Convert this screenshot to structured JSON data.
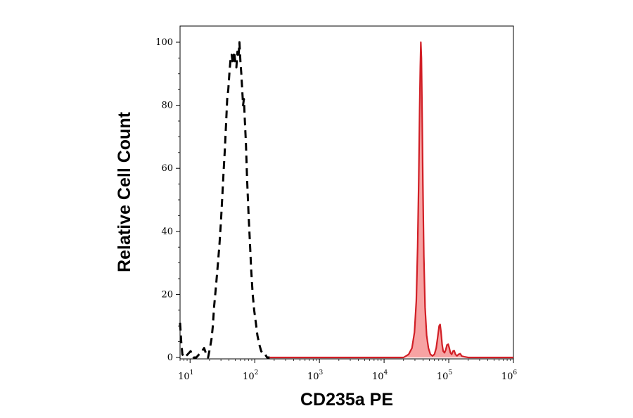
{
  "chart_data": {
    "type": "area",
    "title": "",
    "xlabel": "CD235a PE",
    "ylabel": "Relative Cell Count",
    "xscale": "log",
    "xlim": [
      7,
      1000000
    ],
    "ylim": [
      0,
      100
    ],
    "grid": false,
    "legend": "none",
    "x_tick_labels": [
      {
        "base": "10",
        "exp": "1",
        "value": 10
      },
      {
        "base": "10",
        "exp": "2",
        "value": 100
      },
      {
        "base": "10",
        "exp": "3",
        "value": 1000
      },
      {
        "base": "10",
        "exp": "4",
        "value": 10000
      },
      {
        "base": "10",
        "exp": "5",
        "value": 100000
      },
      {
        "base": "10",
        "exp": "6",
        "value": 1000000
      }
    ],
    "y_tick_labels": [
      "0",
      "20",
      "40",
      "60",
      "80",
      "100"
    ],
    "y_ticks": [
      0,
      20,
      40,
      60,
      80,
      100
    ],
    "series": [
      {
        "style": "dashed",
        "color": "#000000",
        "fill": "none",
        "points": [
          [
            7,
            11
          ],
          [
            7.3,
            5
          ],
          [
            7.6,
            1
          ],
          [
            8.2,
            0
          ],
          [
            9.2,
            1
          ],
          [
            10.2,
            2
          ],
          [
            11.3,
            0
          ],
          [
            12.5,
            0
          ],
          [
            13.8,
            1
          ],
          [
            15.3,
            2
          ],
          [
            16.5,
            3
          ],
          [
            17.8,
            1
          ],
          [
            19,
            0
          ],
          [
            20.3,
            3
          ],
          [
            21.5,
            6
          ],
          [
            22.5,
            10
          ],
          [
            23.5,
            16
          ],
          [
            24.5,
            20
          ],
          [
            25.5,
            24
          ],
          [
            27,
            30
          ],
          [
            28.5,
            36
          ],
          [
            30,
            43
          ],
          [
            31.5,
            51
          ],
          [
            33,
            59
          ],
          [
            34.5,
            66
          ],
          [
            36,
            74
          ],
          [
            37.5,
            82
          ],
          [
            39,
            85
          ],
          [
            40.5,
            90
          ],
          [
            42,
            94
          ],
          [
            44,
            96
          ],
          [
            46,
            93
          ],
          [
            48,
            97
          ],
          [
            50,
            94
          ],
          [
            52,
            92
          ],
          [
            54,
            97
          ],
          [
            56,
            95
          ],
          [
            58,
            100
          ],
          [
            60,
            94
          ],
          [
            62,
            90
          ],
          [
            64,
            85
          ],
          [
            66,
            80
          ],
          [
            68,
            82
          ],
          [
            70,
            76
          ],
          [
            73,
            68
          ],
          [
            76,
            57
          ],
          [
            80,
            46
          ],
          [
            84,
            37
          ],
          [
            88,
            28
          ],
          [
            93,
            20
          ],
          [
            98,
            15
          ],
          [
            104,
            11
          ],
          [
            110,
            7
          ],
          [
            118,
            4
          ],
          [
            126,
            2
          ],
          [
            135,
            1
          ],
          [
            145,
            1
          ],
          [
            155,
            0
          ],
          [
            170,
            0
          ]
        ]
      },
      {
        "style": "solid",
        "color": "#d11f26",
        "fill": "#f7a3a3",
        "points": [
          [
            170,
            0
          ],
          [
            1000,
            0
          ],
          [
            10000,
            0
          ],
          [
            20000,
            0
          ],
          [
            24000,
            1
          ],
          [
            27000,
            3
          ],
          [
            29500,
            8
          ],
          [
            31500,
            18
          ],
          [
            33000,
            35
          ],
          [
            34300,
            56
          ],
          [
            35400,
            78
          ],
          [
            36300,
            92
          ],
          [
            37000,
            100
          ],
          [
            37800,
            95
          ],
          [
            38700,
            78
          ],
          [
            39800,
            55
          ],
          [
            41200,
            32
          ],
          [
            43000,
            16
          ],
          [
            45500,
            7
          ],
          [
            48500,
            3
          ],
          [
            52000,
            1
          ],
          [
            56000,
            0.5
          ],
          [
            60000,
            1
          ],
          [
            64000,
            3
          ],
          [
            68000,
            7
          ],
          [
            71000,
            10
          ],
          [
            73500,
            10.5
          ],
          [
            76000,
            8
          ],
          [
            79000,
            4
          ],
          [
            82000,
            2
          ],
          [
            86000,
            1.5
          ],
          [
            90000,
            2.5
          ],
          [
            94000,
            4
          ],
          [
            98000,
            4.2
          ],
          [
            102000,
            3
          ],
          [
            106000,
            1.5
          ],
          [
            111000,
            1
          ],
          [
            116000,
            2
          ],
          [
            121000,
            2.2
          ],
          [
            127000,
            1
          ],
          [
            134000,
            0.5
          ],
          [
            142000,
            1
          ],
          [
            150000,
            1.2
          ],
          [
            160000,
            0.4
          ],
          [
            175000,
            0.2
          ],
          [
            200000,
            0
          ],
          [
            400000,
            0
          ],
          [
            1000000,
            0
          ]
        ]
      }
    ]
  }
}
